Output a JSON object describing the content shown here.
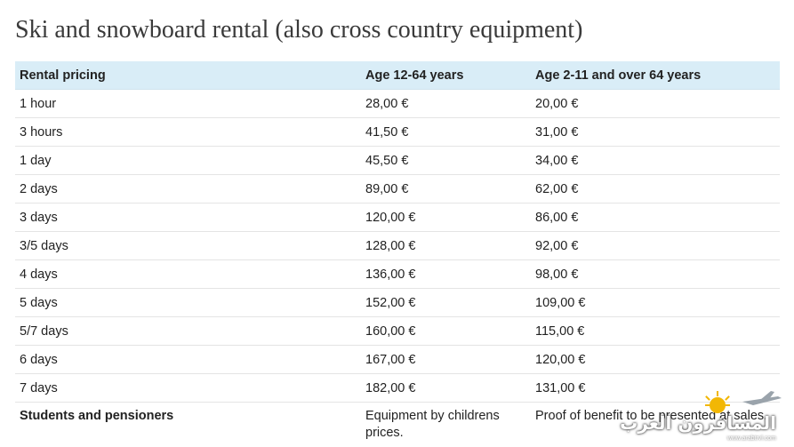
{
  "title": "Ski and snowboard rental (also cross country equipment)",
  "table": {
    "headers": [
      "Rental pricing",
      "Age 12-64 years",
      "Age 2-11 and over 64 years"
    ],
    "rows": [
      [
        "1 hour",
        "28,00 €",
        "20,00 €"
      ],
      [
        "3 hours",
        "41,50 €",
        "31,00 €"
      ],
      [
        "1 day",
        "45,50 €",
        "34,00 €"
      ],
      [
        "2 days",
        "89,00 €",
        "62,00 €"
      ],
      [
        "3 days",
        "120,00 €",
        "86,00 €"
      ],
      [
        "3/5 days",
        "128,00 €",
        "92,00 €"
      ],
      [
        "4 days",
        "136,00 €",
        "98,00 €"
      ],
      [
        "5 days",
        "152,00 €",
        "109,00 €"
      ],
      [
        "5/7 days",
        "160,00 €",
        "115,00 €"
      ],
      [
        "6 days",
        "167,00 €",
        "120,00 €"
      ],
      [
        "7 days",
        "182,00 €",
        "131,00 €"
      ]
    ],
    "last_row": [
      "Students and pensioners",
      "Equipment by childrens prices.",
      "Proof of benefit to be presented at sales."
    ]
  },
  "watermark": {
    "text": "المسافرون العرب",
    "url": "www.arabtrvl.com"
  },
  "colors": {
    "header_background": "#d9edf7",
    "row_border": "#e4e4e4",
    "title_text": "#3a3a3a"
  }
}
